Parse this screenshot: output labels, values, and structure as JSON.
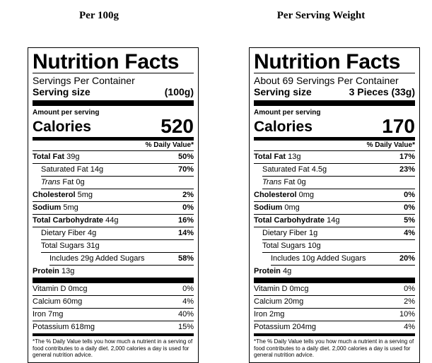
{
  "headers": {
    "left": "Per 100g",
    "right": "Per Serving Weight"
  },
  "labels": [
    {
      "title": "Nutrition Facts",
      "servings": "Servings Per Container",
      "serving_size_label": "Serving size",
      "serving_size_value": "(100g)",
      "amount_per_serving": "Amount per serving",
      "calories_label": "Calories",
      "calories_value": "520",
      "dv_header": "% Daily Value*",
      "nutrients": [
        {
          "name": "Total Fat",
          "amount": "39g",
          "dv": "50%"
        },
        {
          "name": "Saturated Fat",
          "amount": "14g",
          "dv": "70%"
        },
        {
          "name": "Trans",
          "amount": "Fat 0g",
          "dv": ""
        },
        {
          "name": "Cholesterol",
          "amount": "5mg",
          "dv": "2%"
        },
        {
          "name": "Sodium",
          "amount": "5mg",
          "dv": "0%"
        },
        {
          "name": "Total Carbohydrate",
          "amount": "44g",
          "dv": "16%"
        },
        {
          "name": "Dietary Fiber",
          "amount": "4g",
          "dv": "14%"
        },
        {
          "name": "Total Sugars",
          "amount": "31g",
          "dv": ""
        },
        {
          "name": "Includes 29g Added Sugars",
          "amount": "",
          "dv": "58%"
        },
        {
          "name": "Protein",
          "amount": "13g",
          "dv": ""
        }
      ],
      "vitamins": [
        {
          "name": "Vitamin D 0mcg",
          "dv": "0%"
        },
        {
          "name": "Calcium 60mg",
          "dv": "4%"
        },
        {
          "name": "Iron 7mg",
          "dv": "40%"
        },
        {
          "name": "Potassium 618mg",
          "dv": "15%"
        }
      ],
      "footnote": "*The % Daily Value tells you how much a nutrient in a serving of food contributes to a daily diet. 2,000 calories a day is used for general nutrition advice."
    },
    {
      "title": "Nutrition Facts",
      "servings": "About 69 Servings Per Container",
      "serving_size_label": "Serving size",
      "serving_size_value": "3 Pieces (33g)",
      "amount_per_serving": "Amount per serving",
      "calories_label": "Calories",
      "calories_value": "170",
      "dv_header": "% Daily Value*",
      "nutrients": [
        {
          "name": "Total Fat",
          "amount": "13g",
          "dv": "17%"
        },
        {
          "name": "Saturated Fat",
          "amount": "4.5g",
          "dv": "23%"
        },
        {
          "name": "Trans",
          "amount": "Fat 0g",
          "dv": ""
        },
        {
          "name": "Cholesterol",
          "amount": "0mg",
          "dv": "0%"
        },
        {
          "name": "Sodium",
          "amount": "0mg",
          "dv": "0%"
        },
        {
          "name": "Total Carbohydrate",
          "amount": "14g",
          "dv": "5%"
        },
        {
          "name": "Dietary Fiber",
          "amount": "1g",
          "dv": "4%"
        },
        {
          "name": "Total Sugars",
          "amount": "10g",
          "dv": ""
        },
        {
          "name": "Includes 10g Added Sugars",
          "amount": "",
          "dv": "20%"
        },
        {
          "name": "Protein",
          "amount": "4g",
          "dv": ""
        }
      ],
      "vitamins": [
        {
          "name": "Vitamin D 0mcg",
          "dv": "0%"
        },
        {
          "name": "Calcium 20mg",
          "dv": "2%"
        },
        {
          "name": "Iron 2mg",
          "dv": "10%"
        },
        {
          "name": "Potassium 204mg",
          "dv": "4%"
        }
      ],
      "footnote": "*The % Daily Value tells you how much a nutrient in a serving of food contributes to a daily diet. 2,000 calories a day is used for general nutrition advice."
    }
  ]
}
